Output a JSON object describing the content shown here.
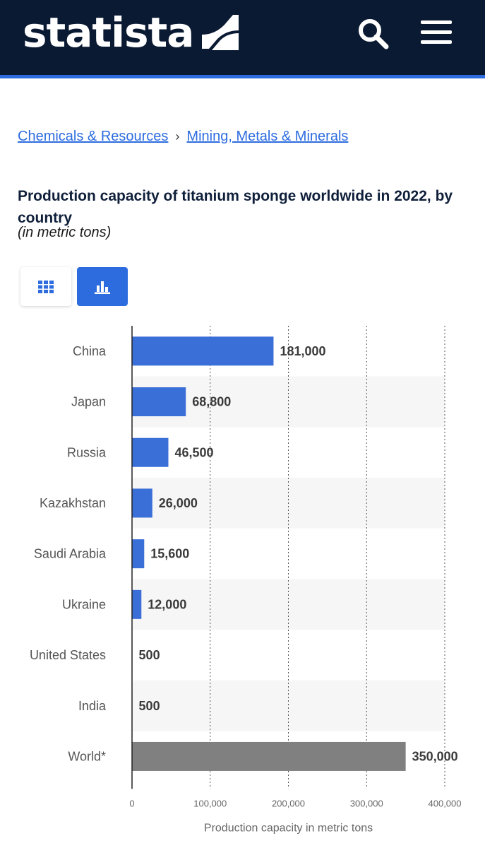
{
  "header": {
    "logo_text": "statista",
    "background": "#0b1a33",
    "accent": "#2d6cdf",
    "icons": [
      "statista-logo-icon",
      "search-icon",
      "menu-icon"
    ]
  },
  "breadcrumb": {
    "items": [
      "Chemicals & Resources",
      "Mining, Metals & Minerals"
    ],
    "separator": "›"
  },
  "page": {
    "title": "Production capacity of titanium sponge worldwide in 2022, by country",
    "subtitle": "(in metric tons)"
  },
  "view_toggle": {
    "options": [
      "table-view-icon",
      "chart-view-icon"
    ],
    "active": "chart-view-icon"
  },
  "chart_data": {
    "type": "bar",
    "orientation": "horizontal",
    "title": "Production capacity of titanium sponge worldwide in 2022, by country",
    "subtitle": "(in metric tons)",
    "categories": [
      "China",
      "Japan",
      "Russia",
      "Kazakhstan",
      "Saudi Arabia",
      "Ukraine",
      "United States",
      "India",
      "World*"
    ],
    "values": [
      181000,
      68800,
      46500,
      26000,
      15600,
      12000,
      500,
      500,
      350000
    ],
    "value_labels": [
      "181,000",
      "68,800",
      "46,500",
      "26,000",
      "15,600",
      "12,000",
      "500",
      "500",
      "350,000"
    ],
    "bar_colors": [
      "#3b6fd8",
      "#3b6fd8",
      "#3b6fd8",
      "#3b6fd8",
      "#3b6fd8",
      "#3b6fd8",
      "#3b6fd8",
      "#3b6fd8",
      "#808080"
    ],
    "xlabel": "Production capacity in metric tons",
    "ylabel": "",
    "xlim": [
      0,
      400000
    ],
    "xticks": [
      0,
      100000,
      200000,
      300000,
      400000
    ],
    "xtick_labels": [
      "0",
      "100,000",
      "200,000",
      "300,000",
      "400,000"
    ],
    "grid": true
  }
}
